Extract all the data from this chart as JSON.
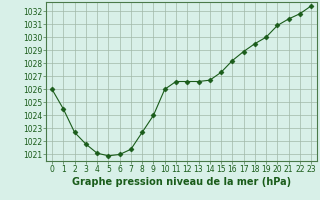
{
  "x": [
    0,
    1,
    2,
    3,
    4,
    5,
    6,
    7,
    8,
    9,
    10,
    11,
    12,
    13,
    14,
    15,
    16,
    17,
    18,
    19,
    20,
    21,
    22,
    23
  ],
  "y": [
    1026.0,
    1024.5,
    1022.7,
    1021.8,
    1021.1,
    1020.9,
    1021.0,
    1021.4,
    1022.7,
    1024.0,
    1026.0,
    1026.6,
    1026.6,
    1026.6,
    1026.7,
    1027.3,
    1028.2,
    1028.9,
    1029.5,
    1030.0,
    1030.9,
    1031.4,
    1031.8,
    1032.4
  ],
  "line_color": "#1a5c1a",
  "marker": "D",
  "marker_size": 2.5,
  "bg_color": "#d8f0e8",
  "grid_color": "#a0b8a8",
  "ylim": [
    1020.5,
    1032.7
  ],
  "yticks": [
    1021,
    1022,
    1023,
    1024,
    1025,
    1026,
    1027,
    1028,
    1029,
    1030,
    1031,
    1032
  ],
  "xticks": [
    0,
    1,
    2,
    3,
    4,
    5,
    6,
    7,
    8,
    9,
    10,
    11,
    12,
    13,
    14,
    15,
    16,
    17,
    18,
    19,
    20,
    21,
    22,
    23
  ],
  "xlabel": "Graphe pression niveau de la mer (hPa)",
  "axis_color": "#4a7a4a",
  "tick_label_color": "#1a5c1a",
  "xlabel_fontsize": 7,
  "tick_fontsize": 5.5
}
